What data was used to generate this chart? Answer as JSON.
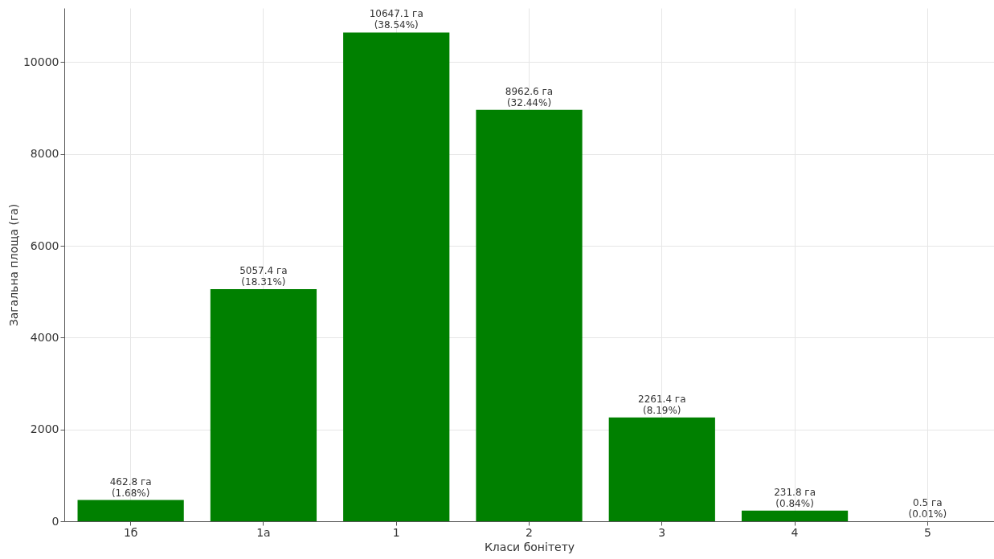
{
  "chart_data": {
    "type": "bar",
    "xlabel": "Класи бонітету",
    "ylabel": "Загальна площа (га)",
    "categories": [
      "1б",
      "1а",
      "1",
      "2",
      "3",
      "4",
      "5"
    ],
    "values": [
      462.8,
      5057.4,
      10647.1,
      8962.6,
      2261.4,
      231.8,
      0.5
    ],
    "color": "#008000",
    "value_labels": [
      "462.8 га\n(1.68%)",
      "5057.4 га\n(18.31%)",
      "10647.1 га\n(38.54%)",
      "8962.6 га\n(32.44%)",
      "2261.4 га\n(8.19%)",
      "231.8 га\n(0.84%)",
      "0.5 га\n(0.01%)"
    ],
    "ylim": [
      0,
      11180
    ],
    "yticks": [
      0,
      2000,
      4000,
      6000,
      8000,
      10000
    ],
    "grid": true
  }
}
